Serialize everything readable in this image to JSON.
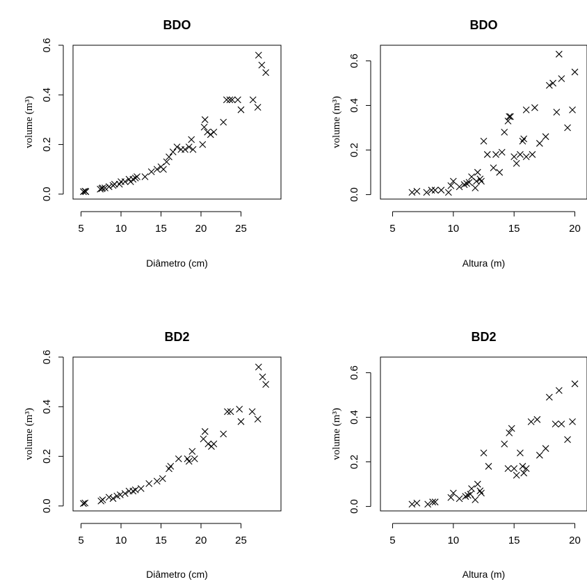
{
  "chart_data": [
    {
      "type": "scatter",
      "title": "BDO",
      "xlabel": "Diâmetro (cm)",
      "ylabel": "volume (m³)",
      "xlim": [
        4,
        30
      ],
      "ylim": [
        -0.02,
        0.6
      ],
      "xticks": [
        5,
        10,
        15,
        20,
        25
      ],
      "yticks": [
        0.0,
        0.2,
        0.4,
        0.6
      ],
      "xtick_labels": [
        "5",
        "10",
        "15",
        "20",
        "25"
      ],
      "ytick_labels": [
        "0.0",
        "0.2",
        "0.4",
        "0.6"
      ],
      "marker": "x",
      "grid": false,
      "x": [
        5.3,
        5.6,
        5.5,
        7.4,
        7.6,
        7.7,
        8.0,
        8.5,
        9.0,
        9.2,
        9.8,
        10.0,
        10.5,
        11.0,
        11.2,
        11.5,
        11.8,
        12.0,
        13.0,
        13.8,
        14.5,
        15.0,
        15.3,
        15.7,
        16.0,
        16.5,
        17.0,
        17.5,
        18.0,
        18.5,
        18.8,
        19.0,
        20.2,
        20.4,
        20.5,
        20.8,
        21.2,
        21.6,
        22.8,
        23.2,
        23.6,
        23.9,
        24.6,
        25.0,
        26.5,
        27.1,
        27.2,
        27.6,
        28.1
      ],
      "y": [
        0.01,
        0.01,
        0.012,
        0.02,
        0.022,
        0.025,
        0.025,
        0.03,
        0.035,
        0.04,
        0.04,
        0.05,
        0.05,
        0.06,
        0.05,
        0.06,
        0.065,
        0.07,
        0.07,
        0.09,
        0.1,
        0.11,
        0.1,
        0.13,
        0.15,
        0.17,
        0.19,
        0.18,
        0.18,
        0.19,
        0.22,
        0.18,
        0.2,
        0.27,
        0.3,
        0.25,
        0.24,
        0.25,
        0.29,
        0.38,
        0.38,
        0.38,
        0.38,
        0.34,
        0.38,
        0.35,
        0.56,
        0.52,
        0.49
      ]
    },
    {
      "type": "scatter",
      "title": "BDO",
      "xlabel": "Altura (m)",
      "ylabel": "volume (m³)",
      "xlim": [
        4,
        21
      ],
      "ylim": [
        -0.02,
        0.67
      ],
      "xticks": [
        5,
        10,
        15,
        20
      ],
      "yticks": [
        0.0,
        0.2,
        0.4,
        0.6
      ],
      "xtick_labels": [
        "5",
        "10",
        "15",
        "20"
      ],
      "ytick_labels": [
        "0.0",
        "0.2",
        "0.4",
        "0.6"
      ],
      "marker": "x",
      "grid": false,
      "x": [
        6.6,
        7.0,
        7.8,
        8.2,
        8.5,
        9.0,
        9.6,
        9.8,
        10.0,
        10.5,
        10.9,
        11.1,
        11.3,
        11.5,
        11.8,
        11.9,
        12.0,
        12.2,
        12.3,
        12.5,
        12.8,
        13.3,
        13.5,
        13.8,
        14.0,
        14.2,
        14.5,
        14.6,
        14.7,
        15.0,
        15.2,
        15.5,
        15.7,
        15.8,
        16.0,
        16.0,
        16.5,
        16.7,
        17.1,
        17.6,
        17.9,
        18.2,
        18.5,
        18.7,
        18.9,
        19.4,
        19.8,
        20.0
      ],
      "y": [
        0.01,
        0.015,
        0.01,
        0.02,
        0.02,
        0.02,
        0.01,
        0.04,
        0.06,
        0.035,
        0.045,
        0.05,
        0.055,
        0.08,
        0.03,
        0.06,
        0.1,
        0.07,
        0.06,
        0.24,
        0.18,
        0.12,
        0.18,
        0.1,
        0.19,
        0.28,
        0.33,
        0.35,
        0.35,
        0.17,
        0.14,
        0.18,
        0.24,
        0.25,
        0.17,
        0.38,
        0.18,
        0.39,
        0.23,
        0.26,
        0.49,
        0.5,
        0.37,
        0.63,
        0.52,
        0.3,
        0.38,
        0.55
      ]
    },
    {
      "type": "scatter",
      "title": "BD2",
      "xlabel": "Diâmetro (cm)",
      "ylabel": "volume (m³)",
      "xlim": [
        4,
        30
      ],
      "ylim": [
        -0.02,
        0.6
      ],
      "xticks": [
        5,
        10,
        15,
        20,
        25
      ],
      "yticks": [
        0.0,
        0.2,
        0.4,
        0.6
      ],
      "xtick_labels": [
        "5",
        "10",
        "15",
        "20",
        "25"
      ],
      "ytick_labels": [
        "0.0",
        "0.2",
        "0.4",
        "0.6"
      ],
      "marker": "x",
      "grid": false,
      "x": [
        5.3,
        5.5,
        7.5,
        7.7,
        8.5,
        9.0,
        9.5,
        9.9,
        10.5,
        11.0,
        11.5,
        11.8,
        12.5,
        13.5,
        14.5,
        15.2,
        16.0,
        16.2,
        17.2,
        18.3,
        18.5,
        18.9,
        19.2,
        20.3,
        20.5,
        20.9,
        21.3,
        21.6,
        22.8,
        23.3,
        23.7,
        24.8,
        25.0,
        26.4,
        27.1,
        27.2,
        27.7,
        28.1
      ],
      "y": [
        0.01,
        0.012,
        0.02,
        0.025,
        0.035,
        0.03,
        0.04,
        0.045,
        0.05,
        0.06,
        0.06,
        0.065,
        0.07,
        0.09,
        0.1,
        0.11,
        0.15,
        0.16,
        0.19,
        0.19,
        0.18,
        0.22,
        0.19,
        0.27,
        0.3,
        0.25,
        0.24,
        0.25,
        0.29,
        0.38,
        0.38,
        0.39,
        0.34,
        0.38,
        0.35,
        0.56,
        0.52,
        0.49
      ]
    },
    {
      "type": "scatter",
      "title": "BD2",
      "xlabel": "Altura (m)",
      "ylabel": "volume (m³)",
      "xlim": [
        4,
        21
      ],
      "ylim": [
        -0.02,
        0.67
      ],
      "xticks": [
        5,
        10,
        15,
        20
      ],
      "yticks": [
        0.0,
        0.2,
        0.4,
        0.6
      ],
      "xtick_labels": [
        "5",
        "10",
        "15",
        "20"
      ],
      "ytick_labels": [
        "0.0",
        "0.2",
        "0.4",
        "0.6"
      ],
      "marker": "x",
      "grid": false,
      "x": [
        6.6,
        7.0,
        7.9,
        8.3,
        8.5,
        9.8,
        10.0,
        10.5,
        11.0,
        11.2,
        11.4,
        11.5,
        11.8,
        12.0,
        12.2,
        12.3,
        12.5,
        12.9,
        14.2,
        14.5,
        14.6,
        14.8,
        15.0,
        15.2,
        15.5,
        15.7,
        15.8,
        16.0,
        16.4,
        16.9,
        17.1,
        17.6,
        17.9,
        18.4,
        18.7,
        18.9,
        19.4,
        19.8,
        20.0
      ],
      "y": [
        0.01,
        0.015,
        0.01,
        0.02,
        0.02,
        0.04,
        0.06,
        0.035,
        0.045,
        0.05,
        0.055,
        0.08,
        0.03,
        0.1,
        0.07,
        0.06,
        0.24,
        0.18,
        0.28,
        0.17,
        0.33,
        0.35,
        0.17,
        0.14,
        0.24,
        0.18,
        0.15,
        0.17,
        0.38,
        0.39,
        0.23,
        0.26,
        0.49,
        0.37,
        0.52,
        0.37,
        0.3,
        0.38,
        0.55
      ]
    }
  ]
}
